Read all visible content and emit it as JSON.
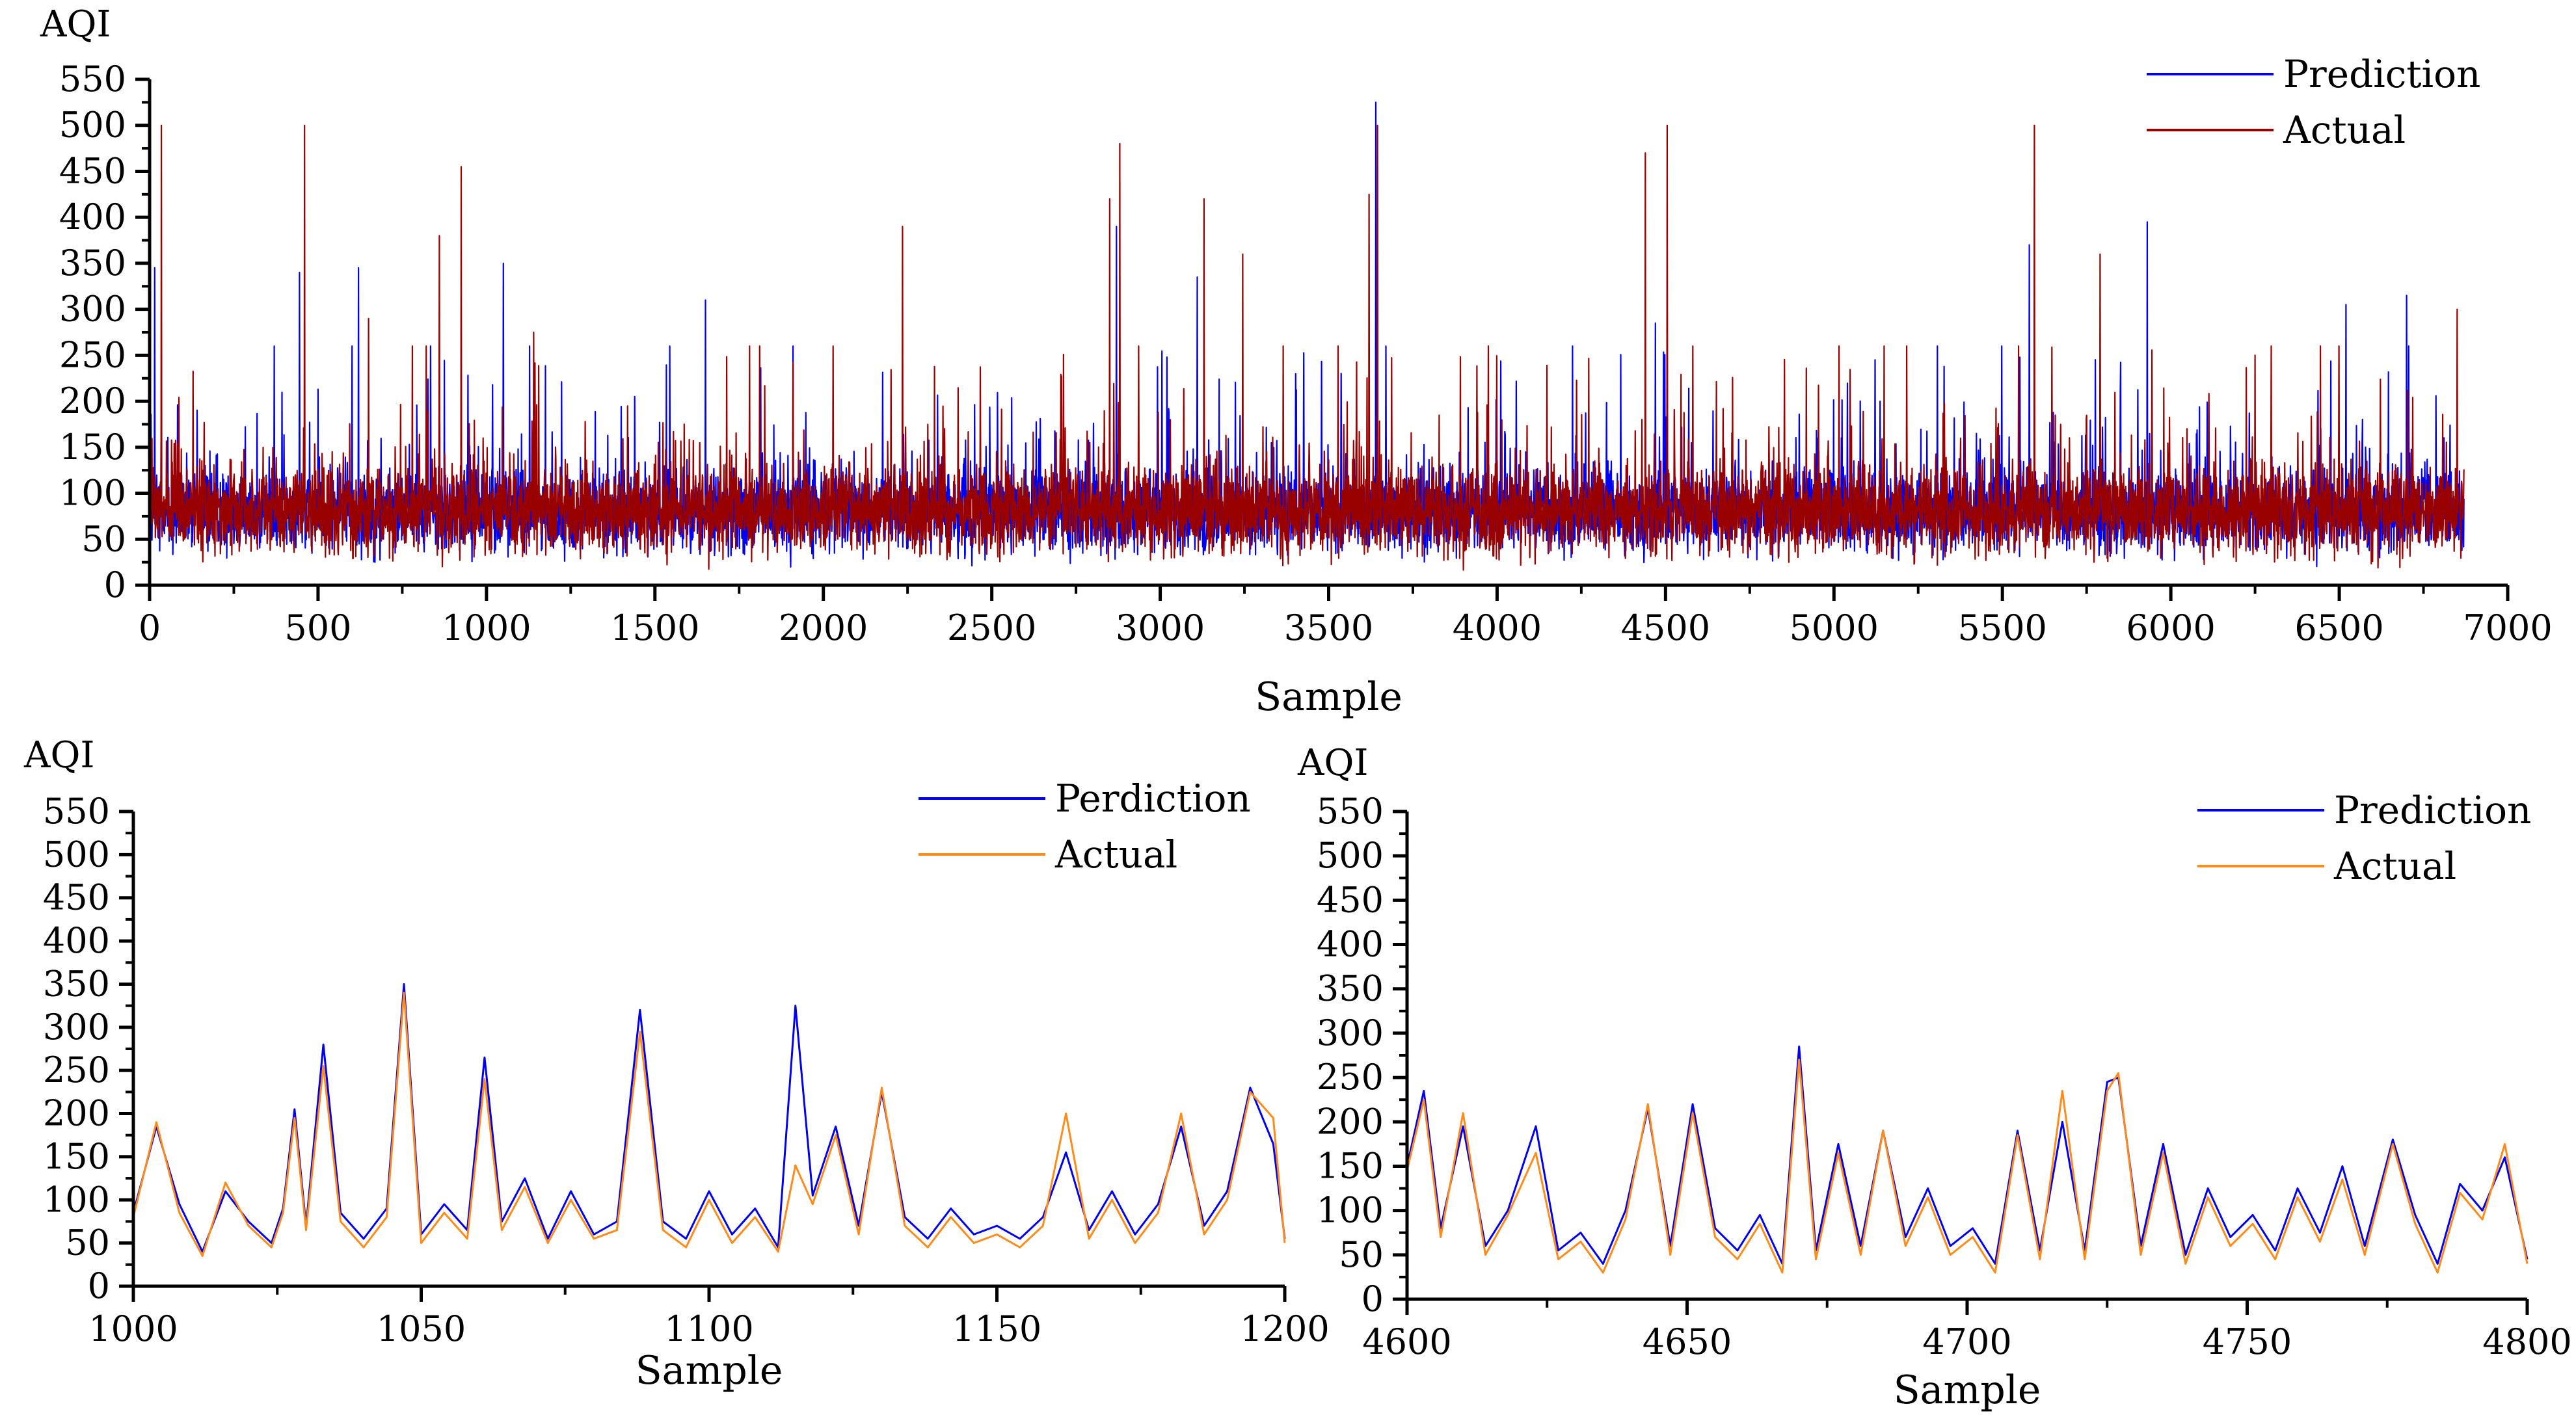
{
  "colors": {
    "prediction": "#0000ee",
    "actual_top": "#990000",
    "actual_bottom": "#ff8c1a",
    "axis": "#000000"
  },
  "chart_data": [
    {
      "id": "full-series",
      "type": "line",
      "xlabel": "Sample",
      "ylabel": "AQI",
      "xlim": [
        0,
        7000
      ],
      "ylim": [
        0,
        550
      ],
      "xticks": [
        0,
        500,
        1000,
        1500,
        2000,
        2500,
        3000,
        3500,
        4000,
        4500,
        5000,
        5500,
        6000,
        6500,
        7000
      ],
      "yticks": [
        0,
        50,
        100,
        150,
        200,
        250,
        300,
        350,
        400,
        450,
        500,
        550
      ],
      "x_range_of_data": [
        0,
        6870
      ],
      "legend_position": "top-right",
      "series": [
        {
          "name": "Prediction",
          "color": "#0000ee",
          "baseline": 80,
          "noise_sd": 30,
          "peaks": [
            [
              15,
              345
            ],
            [
              445,
              340
            ],
            [
              620,
              345
            ],
            [
              1050,
              350
            ],
            [
              1650,
              310
            ],
            [
              2870,
              390
            ],
            [
              3110,
              335
            ],
            [
              3640,
              525
            ],
            [
              4470,
              285
            ],
            [
              5580,
              370
            ],
            [
              5930,
              395
            ],
            [
              6520,
              305
            ],
            [
              6700,
              315
            ]
          ]
        },
        {
          "name": "Actual",
          "color": "#990000",
          "baseline": 80,
          "noise_sd": 32,
          "peaks": [
            [
              35,
              500
            ],
            [
              460,
              500
            ],
            [
              650,
              290
            ],
            [
              860,
              380
            ],
            [
              925,
              455
            ],
            [
              1140,
              275
            ],
            [
              2235,
              390
            ],
            [
              2850,
              420
            ],
            [
              2880,
              480
            ],
            [
              3130,
              420
            ],
            [
              3245,
              360
            ],
            [
              3620,
              425
            ],
            [
              3645,
              500
            ],
            [
              4440,
              470
            ],
            [
              4505,
              500
            ],
            [
              5595,
              500
            ],
            [
              5790,
              360
            ],
            [
              6850,
              300
            ]
          ]
        }
      ]
    },
    {
      "id": "zoom-1000-1200",
      "type": "line",
      "xlabel": "Sample",
      "ylabel": "AQI",
      "xlim": [
        1000,
        1200
      ],
      "ylim": [
        0,
        550
      ],
      "xticks": [
        1000,
        1050,
        1100,
        1150,
        1200
      ],
      "yticks": [
        0,
        50,
        100,
        150,
        200,
        250,
        300,
        350,
        400,
        450,
        500,
        550
      ],
      "legend_position": "top-right",
      "series": [
        {
          "name": "Perdiction",
          "color": "#0000ee",
          "x": [
            1000,
            1004,
            1008,
            1012,
            1016,
            1020,
            1024,
            1026,
            1028,
            1030,
            1033,
            1036,
            1040,
            1044,
            1047,
            1050,
            1054,
            1058,
            1061,
            1064,
            1068,
            1072,
            1076,
            1080,
            1084,
            1088,
            1092,
            1096,
            1100,
            1104,
            1108,
            1112,
            1115,
            1118,
            1122,
            1126,
            1130,
            1134,
            1138,
            1142,
            1146,
            1150,
            1154,
            1158,
            1162,
            1166,
            1170,
            1174,
            1178,
            1182,
            1186,
            1190,
            1194,
            1198,
            1200
          ],
          "y": [
            85,
            185,
            95,
            40,
            110,
            75,
            50,
            90,
            205,
            70,
            280,
            85,
            55,
            90,
            350,
            60,
            95,
            65,
            265,
            75,
            125,
            55,
            110,
            60,
            75,
            320,
            75,
            55,
            110,
            60,
            90,
            45,
            325,
            105,
            185,
            70,
            225,
            80,
            55,
            90,
            60,
            70,
            55,
            80,
            155,
            65,
            110,
            60,
            95,
            185,
            70,
            110,
            230,
            165,
            55
          ]
        },
        {
          "name": "Actual",
          "color": "#ff8c1a",
          "x": [
            1000,
            1004,
            1008,
            1012,
            1016,
            1020,
            1024,
            1026,
            1028,
            1030,
            1033,
            1036,
            1040,
            1044,
            1047,
            1050,
            1054,
            1058,
            1061,
            1064,
            1068,
            1072,
            1076,
            1080,
            1084,
            1088,
            1092,
            1096,
            1100,
            1104,
            1108,
            1112,
            1115,
            1118,
            1122,
            1126,
            1130,
            1134,
            1138,
            1142,
            1146,
            1150,
            1154,
            1158,
            1162,
            1166,
            1170,
            1174,
            1178,
            1182,
            1186,
            1190,
            1194,
            1198,
            1200
          ],
          "y": [
            80,
            190,
            85,
            35,
            120,
            70,
            45,
            85,
            195,
            65,
            255,
            75,
            45,
            80,
            340,
            50,
            85,
            55,
            240,
            65,
            115,
            50,
            100,
            55,
            65,
            295,
            65,
            45,
            100,
            50,
            80,
            40,
            140,
            95,
            175,
            60,
            230,
            70,
            45,
            80,
            50,
            60,
            45,
            70,
            200,
            55,
            100,
            50,
            85,
            200,
            60,
            100,
            225,
            195,
            50
          ]
        }
      ]
    },
    {
      "id": "zoom-4600-4800",
      "type": "line",
      "xlabel": "Sample",
      "ylabel": "AQI",
      "xlim": [
        4600,
        4800
      ],
      "ylim": [
        0,
        550
      ],
      "xticks": [
        4600,
        4650,
        4700,
        4750,
        4800
      ],
      "yticks": [
        0,
        50,
        100,
        150,
        200,
        250,
        300,
        350,
        400,
        450,
        500,
        550
      ],
      "legend_position": "top-right",
      "series": [
        {
          "name": "Prediction",
          "color": "#0000ee",
          "x": [
            4600,
            4603,
            4606,
            4610,
            4614,
            4618,
            4623,
            4627,
            4631,
            4635,
            4639,
            4643,
            4647,
            4651,
            4655,
            4659,
            4663,
            4667,
            4670,
            4673,
            4677,
            4681,
            4685,
            4689,
            4693,
            4697,
            4701,
            4705,
            4709,
            4713,
            4717,
            4721,
            4725,
            4727,
            4731,
            4735,
            4739,
            4743,
            4747,
            4751,
            4755,
            4759,
            4763,
            4767,
            4771,
            4776,
            4780,
            4784,
            4788,
            4792,
            4796,
            4800
          ],
          "y": [
            150,
            235,
            80,
            195,
            60,
            100,
            195,
            55,
            75,
            40,
            100,
            215,
            60,
            220,
            80,
            55,
            95,
            40,
            285,
            55,
            175,
            60,
            190,
            70,
            125,
            60,
            80,
            40,
            190,
            55,
            200,
            55,
            245,
            250,
            60,
            175,
            50,
            125,
            70,
            95,
            55,
            125,
            75,
            150,
            60,
            180,
            95,
            40,
            130,
            100,
            160,
            45
          ]
        },
        {
          "name": "Actual",
          "color": "#ff8c1a",
          "x": [
            4600,
            4603,
            4606,
            4610,
            4614,
            4618,
            4623,
            4627,
            4631,
            4635,
            4639,
            4643,
            4647,
            4651,
            4655,
            4659,
            4663,
            4667,
            4670,
            4673,
            4677,
            4681,
            4685,
            4689,
            4693,
            4697,
            4701,
            4705,
            4709,
            4713,
            4717,
            4721,
            4725,
            4727,
            4731,
            4735,
            4739,
            4743,
            4747,
            4751,
            4755,
            4759,
            4763,
            4767,
            4771,
            4776,
            4780,
            4784,
            4788,
            4792,
            4796,
            4800
          ],
          "y": [
            145,
            225,
            70,
            210,
            50,
            95,
            165,
            45,
            65,
            30,
            90,
            220,
            50,
            210,
            70,
            45,
            85,
            30,
            270,
            45,
            165,
            50,
            190,
            60,
            115,
            50,
            70,
            30,
            185,
            45,
            235,
            45,
            235,
            255,
            50,
            165,
            40,
            115,
            60,
            85,
            45,
            115,
            65,
            135,
            50,
            175,
            85,
            30,
            120,
            90,
            175,
            40
          ]
        }
      ]
    }
  ]
}
